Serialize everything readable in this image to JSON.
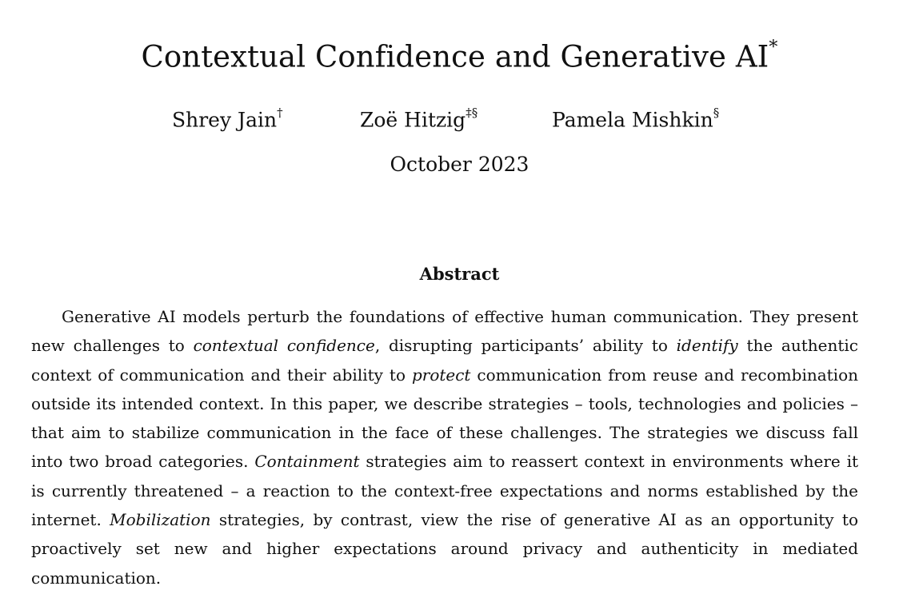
{
  "paper": {
    "title": "Contextual Confidence and Generative AI",
    "title_mark": "*",
    "authors": [
      {
        "name": "Shrey Jain",
        "marks": "†"
      },
      {
        "name": "Zoë Hitzig",
        "marks": "‡§"
      },
      {
        "name": "Pamela Mishkin",
        "marks": "§"
      }
    ],
    "date": "October 2023"
  },
  "abstract": {
    "heading": "Abstract",
    "segments": [
      {
        "text": "Generative AI models perturb the foundations of effective human communication. They present new challenges to ",
        "italic": false
      },
      {
        "text": "contextual confidence",
        "italic": true
      },
      {
        "text": ", disrupting participants’ ability to ",
        "italic": false
      },
      {
        "text": "identify",
        "italic": true
      },
      {
        "text": " the authentic context of communication and their ability to ",
        "italic": false
      },
      {
        "text": "protect",
        "italic": true
      },
      {
        "text": " communication from reuse and recombination outside its intended context. In this paper, we describe strategies – tools, tech­nologies and policies – that aim to stabilize communication in the face of these challenges. The strategies we discuss fall into two broad categories. ",
        "italic": false
      },
      {
        "text": "Containment",
        "italic": true
      },
      {
        "text": " strategies aim to reassert context in environments where it is currently threatened – a reaction to the context-free expec­tations and norms established by the internet. ",
        "italic": false
      },
      {
        "text": "Mobilization",
        "italic": true
      },
      {
        "text": " strategies, by contrast, view the rise of generative AI as an opportunity to proactively set new and higher expectations around privacy and authenticity in mediated communication.",
        "italic": false
      }
    ]
  }
}
